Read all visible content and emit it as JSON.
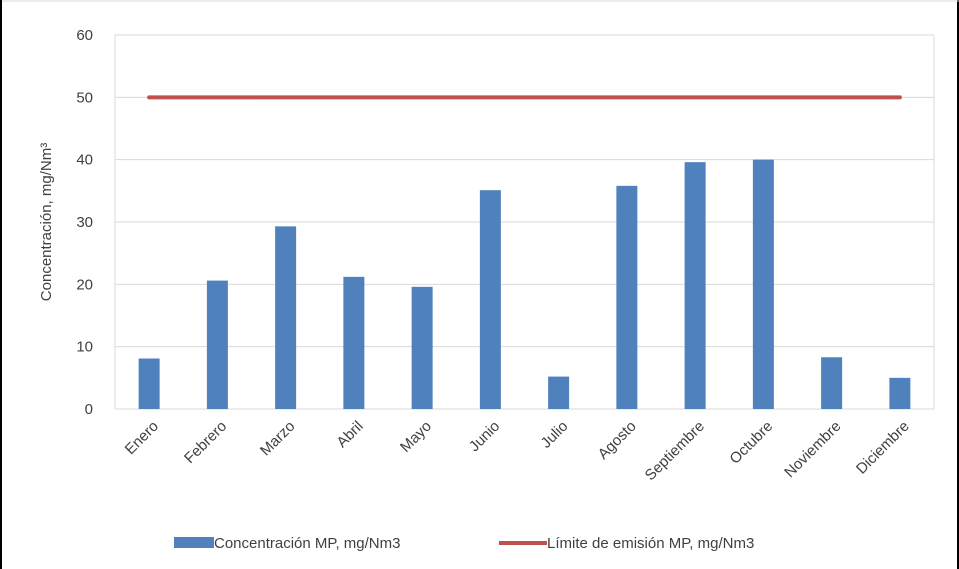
{
  "chart_data": {
    "type": "bar",
    "title": "",
    "xlabel": "",
    "ylabel": "Concentración, mg/Nm³",
    "ylim": [
      0,
      60
    ],
    "yticks": [
      0,
      10,
      20,
      30,
      40,
      50,
      60
    ],
    "grid": true,
    "legend_position": "bottom",
    "categories": [
      "Enero",
      "Febrero",
      "Marzo",
      "Abril",
      "Mayo",
      "Junio",
      "Julio",
      "Agosto",
      "Septiembre",
      "Octubre",
      "Noviembre",
      "Diciembre"
    ],
    "series": [
      {
        "name": "Concentración MP, mg/Nm3",
        "type": "bar",
        "color": "#4f81bd",
        "values": [
          8.1,
          20.6,
          29.3,
          21.2,
          19.6,
          35.1,
          5.2,
          35.8,
          39.6,
          40.0,
          8.3,
          5.0
        ]
      },
      {
        "name": "Límite de emisión MP, mg/Nm3",
        "type": "line",
        "color": "#c0504d",
        "values": [
          50,
          50,
          50,
          50,
          50,
          50,
          50,
          50,
          50,
          50,
          50,
          50
        ]
      }
    ]
  }
}
